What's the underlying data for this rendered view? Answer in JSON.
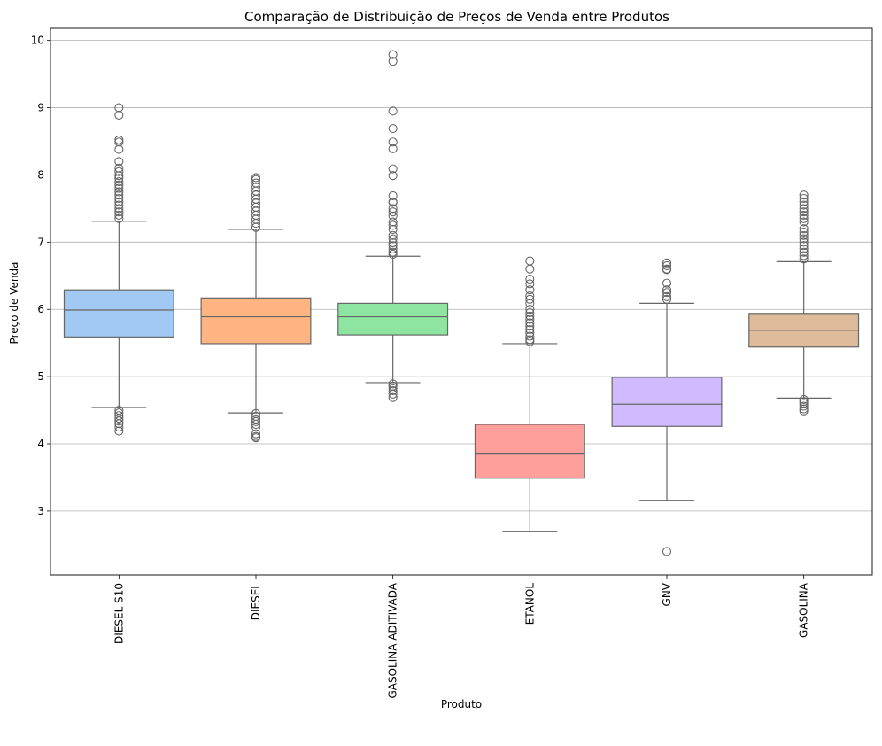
{
  "chart_data": {
    "type": "boxplot",
    "title": "Comparação de Distribuição de Preços de Venda entre Produtos",
    "xlabel": "Produto",
    "ylabel": "Preço de Venda",
    "ylim": [
      2.05,
      10.18
    ],
    "yticks": [
      3,
      4,
      5,
      6,
      7,
      8,
      9,
      10
    ],
    "grid": "y",
    "categories": [
      "DIESEL S10",
      "DIESEL",
      "GASOLINA ADITIVADA",
      "ETANOL",
      "GNV",
      "GASOLINA"
    ],
    "colors": [
      "#a1c9f4",
      "#ffb482",
      "#8de5a1",
      "#ff9f9b",
      "#d0bbff",
      "#debb9b"
    ],
    "line_color": "#666666",
    "boxes": [
      {
        "name": "DIESEL S10",
        "whisker_low": 4.54,
        "q1": 5.59,
        "median": 5.99,
        "q3": 6.29,
        "whisker_high": 7.31,
        "outliers": [
          9.0,
          8.89,
          8.52,
          8.49,
          8.38,
          8.2,
          8.1,
          8.05,
          7.99,
          7.95,
          7.9,
          7.85,
          7.8,
          7.75,
          7.7,
          7.65,
          7.6,
          7.55,
          7.5,
          7.45,
          7.4,
          7.35,
          4.5,
          4.46,
          4.42,
          4.38,
          4.34,
          4.3,
          4.25,
          4.19
        ]
      },
      {
        "name": "DIESEL",
        "whisker_low": 4.46,
        "q1": 5.49,
        "median": 5.89,
        "q3": 6.17,
        "whisker_high": 7.19,
        "outliers": [
          7.96,
          7.93,
          7.88,
          7.82,
          7.76,
          7.7,
          7.64,
          7.58,
          7.52,
          7.46,
          7.4,
          7.34,
          7.28,
          7.22,
          4.45,
          4.41,
          4.37,
          4.33,
          4.29,
          4.25,
          4.15,
          4.11,
          4.09
        ]
      },
      {
        "name": "GASOLINA ADITIVADA",
        "whisker_low": 4.91,
        "q1": 5.62,
        "median": 5.89,
        "q3": 6.09,
        "whisker_high": 6.79,
        "outliers": [
          9.79,
          9.69,
          8.95,
          8.69,
          8.49,
          8.39,
          8.09,
          7.99,
          7.69,
          7.6,
          7.59,
          7.5,
          7.45,
          7.39,
          7.3,
          7.25,
          7.19,
          7.1,
          7.05,
          6.99,
          6.95,
          6.9,
          6.85,
          6.82,
          4.89,
          4.86,
          4.83,
          4.79,
          4.74,
          4.69
        ]
      },
      {
        "name": "ETANOL",
        "whisker_low": 2.7,
        "q1": 3.49,
        "median": 3.86,
        "q3": 4.29,
        "whisker_high": 5.49,
        "outliers": [
          6.72,
          6.6,
          6.45,
          6.38,
          6.29,
          6.2,
          6.15,
          6.09,
          6.0,
          5.95,
          5.9,
          5.85,
          5.8,
          5.75,
          5.7,
          5.65,
          5.6,
          5.55,
          5.52
        ]
      },
      {
        "name": "GNV",
        "whisker_low": 3.16,
        "q1": 4.26,
        "median": 4.59,
        "q3": 4.99,
        "whisker_high": 6.09,
        "outliers": [
          6.69,
          6.65,
          6.6,
          6.59,
          6.39,
          6.29,
          6.25,
          6.19,
          6.15,
          2.4
        ]
      },
      {
        "name": "GASOLINA",
        "whisker_low": 4.68,
        "q1": 5.44,
        "median": 5.69,
        "q3": 5.94,
        "whisker_high": 6.71,
        "outliers": [
          7.7,
          7.65,
          7.6,
          7.55,
          7.5,
          7.45,
          7.4,
          7.35,
          7.3,
          7.2,
          7.15,
          7.1,
          7.05,
          7.0,
          6.95,
          6.9,
          6.85,
          6.8,
          6.75,
          4.66,
          4.63,
          4.6,
          4.56,
          4.52,
          4.49
        ]
      }
    ]
  }
}
